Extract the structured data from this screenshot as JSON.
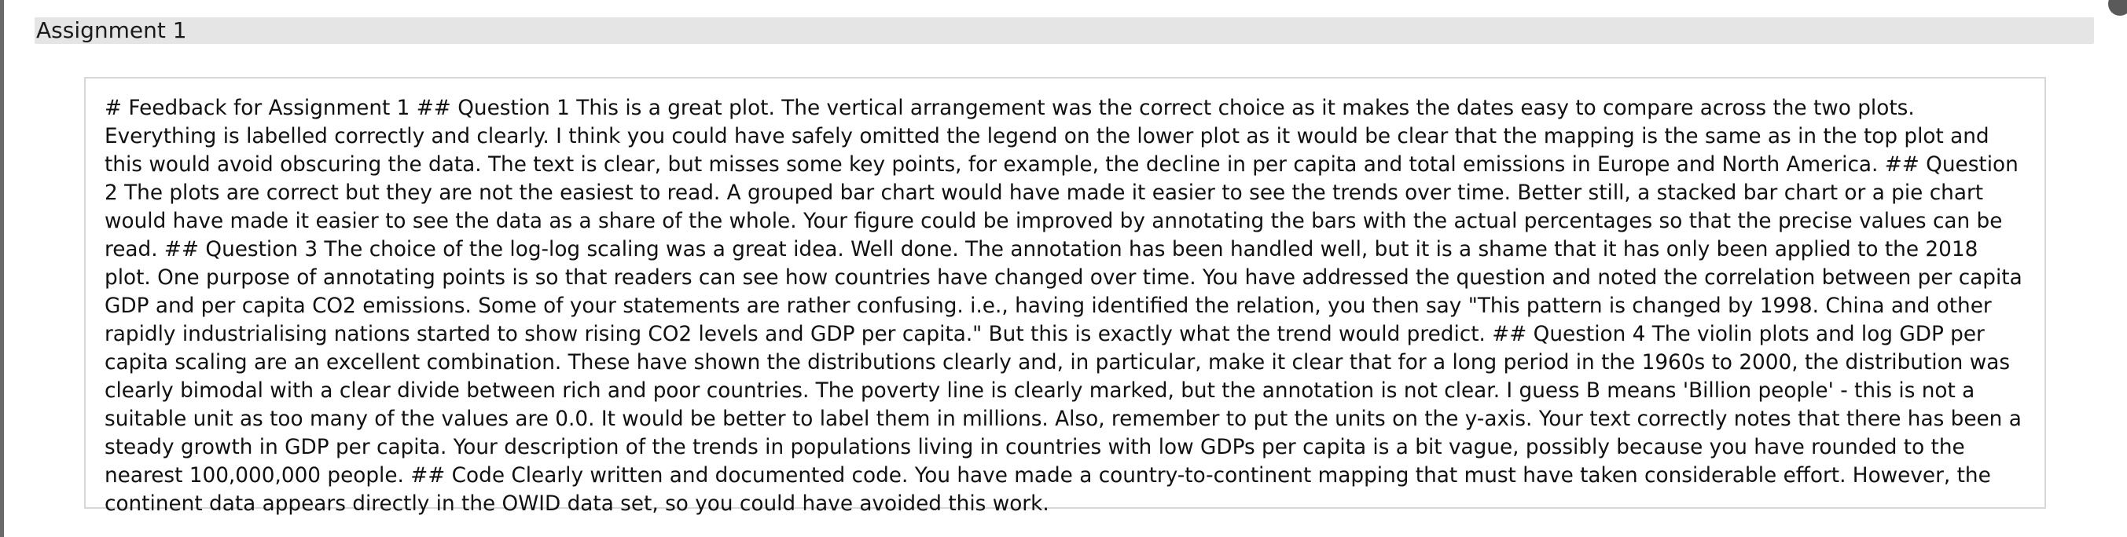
{
  "assignment": {
    "title": "Assignment 1"
  },
  "feedback": {
    "text": "# Feedback for Assignment 1 ## Question 1 This is a great plot. The vertical arrangement was the correct choice as it makes the dates easy to compare across the two plots. Everything is labelled correctly and clearly. I think you could have safely omitted the legend on the lower plot as it would be clear that the mapping is the same as in the top plot and this would avoid obscuring the data. The text is clear, but misses some key points, for example, the decline in per capita and total emissions in Europe and North America. ## Question 2 The plots are correct but they are not the easiest to read. A grouped bar chart would have made it easier to see the trends over time. Better still, a stacked bar chart or a pie chart would have made it easier to see the data as a share of the whole. Your figure could be improved by annotating the bars with the actual percentages so that the precise values can be read. ## Question 3 The choice of the log-log scaling was a great idea. Well done. The annotation has been handled well, but it is a shame that it has only been applied to the 2018 plot. One purpose of annotating points is so that readers can see how countries have changed over time. You have addressed the question and noted the correlation between per capita GDP and per capita CO2 emissions. Some of your statements are rather confusing. i.e., having identified the relation, you then say \"This pattern is changed by 1998. China and other rapidly industrialising nations started to show rising CO2 levels and GDP per capita.\" But this is exactly what the trend would predict. ## Question 4 The violin plots and log GDP per capita scaling are an excellent combination. These have shown the distributions clearly and, in particular, make it clear that for a long period in the 1960s to 2000, the distribution was clearly bimodal with a clear divide between rich and poor countries. The poverty line is clearly marked, but the annotation is not clear. I guess B means 'Billion people' - this is not a suitable unit as too many of the values are 0.0. It would be better to label them in millions. Also, remember to put the units on the y-axis. Your text correctly notes that there has been a steady growth in GDP per capita. Your description of the trends in populations living in countries with low GDPs per capita is a bit vague, possibly because you have rounded to the nearest 100,000,000 people. ## Code Clearly written and documented code. You have made a country-to-continent mapping that must have taken considerable effort. However, the continent data appears directly in the OWID data set, so you could have avoided this work."
  },
  "colors": {
    "header_bg": "#e5e5e5",
    "box_border": "#d7d7d7",
    "text": "#111111"
  }
}
